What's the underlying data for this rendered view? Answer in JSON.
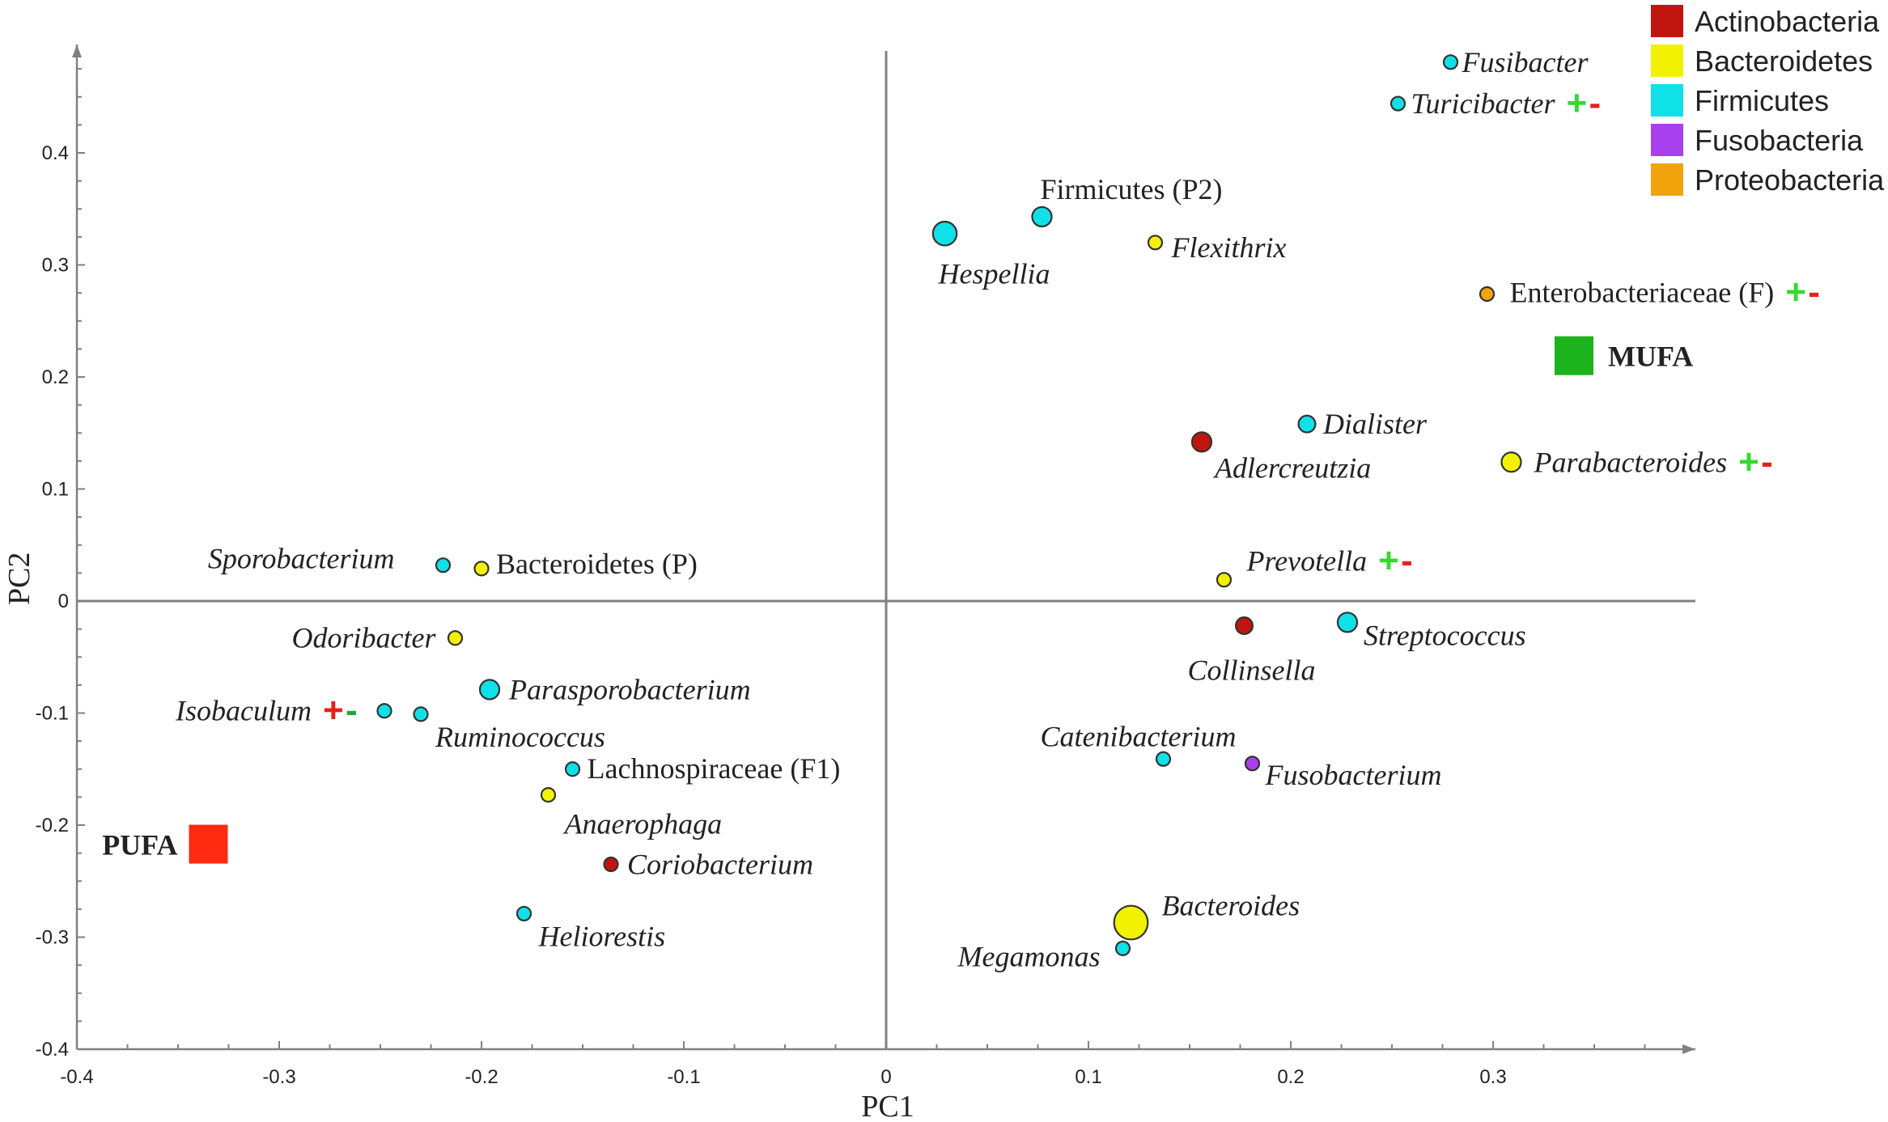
{
  "chart_data": {
    "type": "scatter",
    "title": "",
    "xlabel": "PC1",
    "ylabel": "PC2",
    "xlim": [
      -0.4,
      0.4
    ],
    "ylim": [
      -0.4,
      0.5
    ],
    "grid": false,
    "x_ticks": [
      "-0.4",
      "-0.3",
      "-0.2",
      "-0.1",
      "0",
      "0.1",
      "0.2",
      "0.3"
    ],
    "y_ticks": [
      "-0.4",
      "-0.3",
      "-0.2",
      "-0.1",
      "0",
      "0.1",
      "0.2",
      "0.3",
      "0.4"
    ],
    "legend_position": "top-right",
    "legend": [
      {
        "name": "Actinobacteria",
        "color": "#c0150f"
      },
      {
        "name": "Bacteroidetes",
        "color": "#f2f200"
      },
      {
        "name": "Firmicutes",
        "color": "#10e0e8"
      },
      {
        "name": "Fusobacteria",
        "color": "#a840ee"
      },
      {
        "name": "Proteobacteria",
        "color": "#f2a40c"
      }
    ],
    "markers": [
      {
        "name": "PUFA",
        "x": -0.335,
        "y": -0.217,
        "color": "#ff2a10"
      },
      {
        "name": "MUFA",
        "x": 0.34,
        "y": 0.219,
        "color": "#1db31d"
      }
    ],
    "points": [
      {
        "label": "Fusibacter",
        "x": 0.279,
        "y": 0.481,
        "phylum": "Firmicutes",
        "size": 1,
        "italic": true,
        "signs": []
      },
      {
        "label": "Turicibacter",
        "x": 0.253,
        "y": 0.444,
        "phylum": "Firmicutes",
        "size": 1,
        "italic": true,
        "signs": [
          "+",
          "-"
        ]
      },
      {
        "label": "Firmicutes (P2)",
        "x": 0.077,
        "y": 0.343,
        "phylum": "Firmicutes",
        "size": 2,
        "italic": false,
        "signs": []
      },
      {
        "label": "Hespellia",
        "x": 0.029,
        "y": 0.328,
        "phylum": "Firmicutes",
        "size": 3,
        "italic": true,
        "signs": []
      },
      {
        "label": "Flexithrix",
        "x": 0.133,
        "y": 0.32,
        "phylum": "Bacteroidetes",
        "size": 1,
        "italic": true,
        "signs": []
      },
      {
        "label": "Enterobacteriaceae (F)",
        "x": 0.297,
        "y": 0.274,
        "phylum": "Proteobacteria",
        "size": 1,
        "italic": false,
        "signs": [
          "+",
          "-"
        ]
      },
      {
        "label": "Dialister",
        "x": 0.208,
        "y": 0.158,
        "phylum": "Firmicutes",
        "size": 1.5,
        "italic": true,
        "signs": []
      },
      {
        "label": "Adlercreutzia",
        "x": 0.156,
        "y": 0.142,
        "phylum": "Actinobacteria",
        "size": 2,
        "italic": true,
        "signs": []
      },
      {
        "label": "Parabacteroides",
        "x": 0.309,
        "y": 0.124,
        "phylum": "Bacteroidetes",
        "size": 2,
        "italic": true,
        "signs": [
          "+",
          "-"
        ]
      },
      {
        "label": "Prevotella",
        "x": 0.167,
        "y": 0.019,
        "phylum": "Bacteroidetes",
        "size": 1,
        "italic": true,
        "signs": [
          "+",
          "-"
        ]
      },
      {
        "label": "Collinsella",
        "x": 0.177,
        "y": -0.022,
        "phylum": "Actinobacteria",
        "size": 1.5,
        "italic": true,
        "signs": []
      },
      {
        "label": "Streptococcus",
        "x": 0.228,
        "y": -0.019,
        "phylum": "Firmicutes",
        "size": 2,
        "italic": true,
        "signs": []
      },
      {
        "label": "Catenibacterium",
        "x": 0.137,
        "y": -0.141,
        "phylum": "Firmicutes",
        "size": 1,
        "italic": true,
        "signs": []
      },
      {
        "label": "Fusobacterium",
        "x": 0.181,
        "y": -0.145,
        "phylum": "Fusobacteria",
        "size": 1,
        "italic": true,
        "signs": []
      },
      {
        "label": "Bacteroides",
        "x": 0.121,
        "y": -0.287,
        "phylum": "Bacteroidetes",
        "size": 6,
        "italic": true,
        "signs": []
      },
      {
        "label": "Megamonas",
        "x": 0.117,
        "y": -0.31,
        "phylum": "Firmicutes",
        "size": 1,
        "italic": true,
        "signs": []
      },
      {
        "label": "Sporobacterium",
        "x": -0.219,
        "y": 0.032,
        "phylum": "Firmicutes",
        "size": 1,
        "italic": true,
        "signs": []
      },
      {
        "label": "Bacteroidetes (P)",
        "x": -0.2,
        "y": 0.029,
        "phylum": "Bacteroidetes",
        "size": 1,
        "italic": false,
        "signs": []
      },
      {
        "label": "Odoribacter",
        "x": -0.213,
        "y": -0.033,
        "phylum": "Bacteroidetes",
        "size": 1,
        "italic": true,
        "signs": []
      },
      {
        "label": "Parasporobacterium",
        "x": -0.196,
        "y": -0.079,
        "phylum": "Firmicutes",
        "size": 2,
        "italic": true,
        "signs": []
      },
      {
        "label": "Isobaculum",
        "x": -0.248,
        "y": -0.098,
        "phylum": "Firmicutes",
        "size": 1,
        "italic": true,
        "signs": [
          "+",
          "-"
        ]
      },
      {
        "label": "Ruminococcus",
        "x": -0.23,
        "y": -0.101,
        "phylum": "Firmicutes",
        "size": 1,
        "italic": true,
        "signs": []
      },
      {
        "label": "Lachnospiraceae (F1)",
        "x": -0.155,
        "y": -0.15,
        "phylum": "Firmicutes",
        "size": 1,
        "italic": false,
        "signs": []
      },
      {
        "label": "Anaerophaga",
        "x": -0.167,
        "y": -0.173,
        "phylum": "Bacteroidetes",
        "size": 1,
        "italic": true,
        "signs": []
      },
      {
        "label": "Coriobacterium",
        "x": -0.136,
        "y": -0.235,
        "phylum": "Actinobacteria",
        "size": 1,
        "italic": true,
        "signs": []
      },
      {
        "label": "Heliorestis",
        "x": -0.179,
        "y": -0.279,
        "phylum": "Firmicutes",
        "size": 1,
        "italic": true,
        "signs": []
      }
    ]
  }
}
